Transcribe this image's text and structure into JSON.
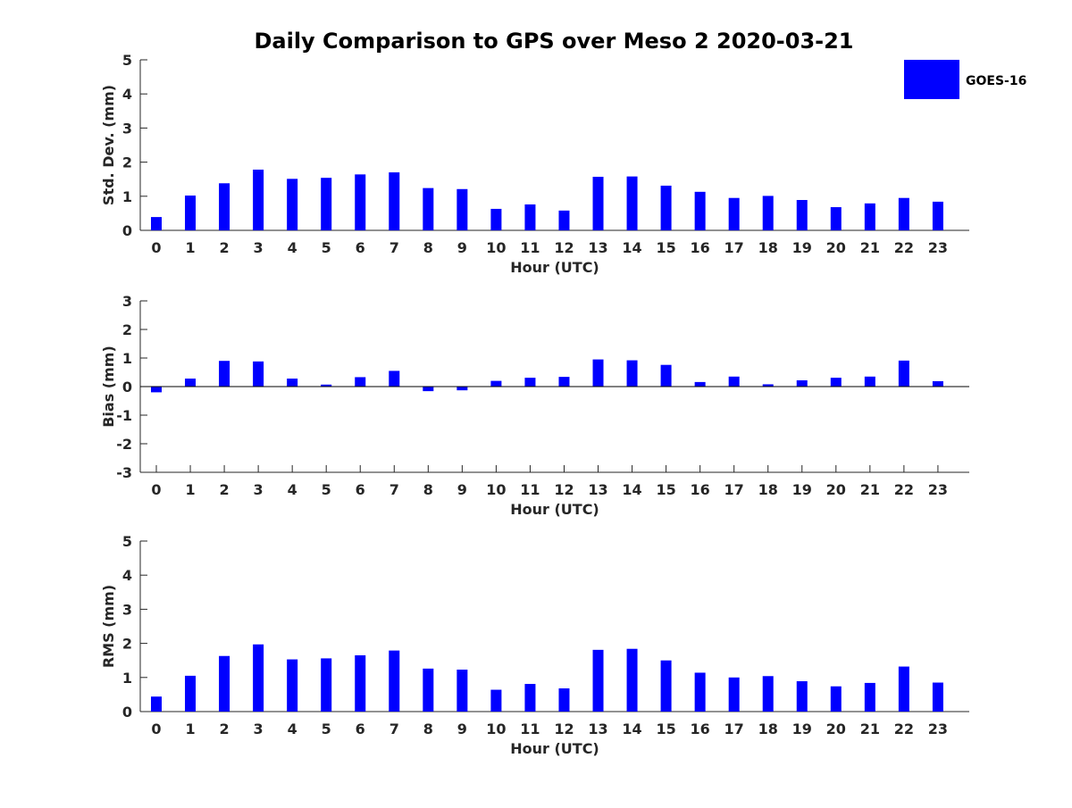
{
  "title": "Daily Comparison to GPS over Meso 2 2020-03-21",
  "bar_color": "#0000ff",
  "axis_color": "#262626",
  "legend": {
    "label": "GOES-16",
    "placement": "top-right"
  },
  "chart_data": [
    {
      "type": "bar",
      "xlabel": "Hour (UTC)",
      "ylabel": "Std. Dev. (mm)",
      "ylim": [
        0,
        5
      ],
      "yticks": [
        0,
        1,
        2,
        3,
        4,
        5
      ],
      "categories": [
        "0",
        "1",
        "2",
        "3",
        "4",
        "5",
        "6",
        "7",
        "8",
        "9",
        "10",
        "11",
        "12",
        "13",
        "14",
        "15",
        "16",
        "17",
        "18",
        "19",
        "20",
        "21",
        "22",
        "23"
      ],
      "series": [
        {
          "name": "GOES-16",
          "values": [
            0.39,
            1.02,
            1.38,
            1.78,
            1.51,
            1.54,
            1.64,
            1.7,
            1.24,
            1.21,
            0.63,
            0.76,
            0.58,
            1.57,
            1.58,
            1.31,
            1.13,
            0.95,
            1.01,
            0.89,
            0.68,
            0.79,
            0.95,
            0.84
          ]
        }
      ]
    },
    {
      "type": "bar",
      "xlabel": "Hour (UTC)",
      "ylabel": "Bias (mm)",
      "ylim": [
        -3,
        3
      ],
      "yticks": [
        -3,
        -2,
        -1,
        0,
        1,
        2,
        3
      ],
      "categories": [
        "0",
        "1",
        "2",
        "3",
        "4",
        "5",
        "6",
        "7",
        "8",
        "9",
        "10",
        "11",
        "12",
        "13",
        "14",
        "15",
        "16",
        "17",
        "18",
        "19",
        "20",
        "21",
        "22",
        "23"
      ],
      "series": [
        {
          "name": "GOES-16",
          "values": [
            -0.2,
            0.28,
            0.9,
            0.88,
            0.28,
            0.07,
            0.33,
            0.55,
            -0.16,
            -0.13,
            0.2,
            0.31,
            0.34,
            0.95,
            0.92,
            0.76,
            0.16,
            0.35,
            0.08,
            0.22,
            0.31,
            0.35,
            0.91,
            0.19
          ]
        }
      ]
    },
    {
      "type": "bar",
      "xlabel": "Hour (UTC)",
      "ylabel": "RMS (mm)",
      "ylim": [
        0,
        5
      ],
      "yticks": [
        0,
        1,
        2,
        3,
        4,
        5
      ],
      "categories": [
        "0",
        "1",
        "2",
        "3",
        "4",
        "5",
        "6",
        "7",
        "8",
        "9",
        "10",
        "11",
        "12",
        "13",
        "14",
        "15",
        "16",
        "17",
        "18",
        "19",
        "20",
        "21",
        "22",
        "23"
      ],
      "series": [
        {
          "name": "GOES-16",
          "values": [
            0.44,
            1.05,
            1.63,
            1.97,
            1.53,
            1.56,
            1.65,
            1.79,
            1.26,
            1.23,
            0.64,
            0.81,
            0.68,
            1.81,
            1.84,
            1.5,
            1.14,
            1.0,
            1.04,
            0.89,
            0.74,
            0.84,
            1.32,
            0.85
          ]
        }
      ]
    }
  ]
}
